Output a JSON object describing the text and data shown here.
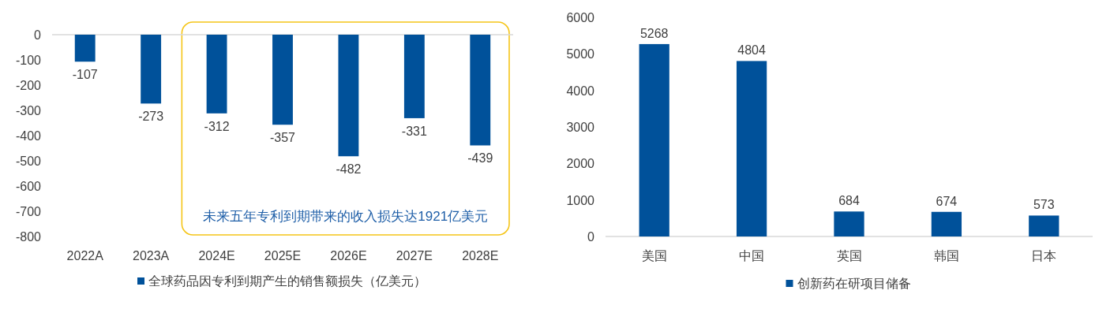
{
  "chart_data": [
    {
      "type": "bar",
      "categories": [
        "2022A",
        "2023A",
        "2024E",
        "2025E",
        "2026E",
        "2027E",
        "2028E"
      ],
      "series": [
        {
          "name": "全球药品因专利到期产生的销售额损失（亿美元）",
          "color": "#00519a",
          "values": [
            -107,
            -273,
            -312,
            -357,
            -482,
            -331,
            -439
          ]
        }
      ],
      "ylim": [
        -800,
        0
      ],
      "yticks": [
        -800,
        -700,
        -600,
        -500,
        -400,
        -300,
        -200,
        -100,
        0
      ],
      "data_labels": true,
      "legend": "bottom",
      "grid": false,
      "annotations": [
        "未来五年专利到期带来的收入损失达1921亿美元"
      ]
    },
    {
      "type": "bar",
      "categories": [
        "美国",
        "中国",
        "英国",
        "韩国",
        "日本"
      ],
      "series": [
        {
          "name": "创新药在研项目储备",
          "color": "#00519a",
          "values": [
            5268,
            4804,
            684,
            674,
            573
          ]
        }
      ],
      "ylim": [
        0,
        6000
      ],
      "yticks": [
        0,
        1000,
        2000,
        3000,
        4000,
        5000,
        6000
      ],
      "data_labels": true,
      "legend": "bottom",
      "grid": false
    }
  ]
}
